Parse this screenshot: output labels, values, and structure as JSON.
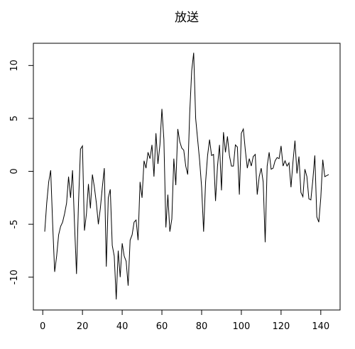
{
  "chart_data": {
    "type": "line",
    "title": "放送",
    "x": [
      1,
      2,
      3,
      4,
      5,
      6,
      7,
      8,
      9,
      10,
      11,
      12,
      13,
      14,
      15,
      16,
      17,
      18,
      19,
      20,
      21,
      22,
      23,
      24,
      25,
      26,
      27,
      28,
      29,
      30,
      31,
      32,
      33,
      34,
      35,
      36,
      37,
      38,
      39,
      40,
      41,
      42,
      43,
      44,
      45,
      46,
      47,
      48,
      49,
      50,
      51,
      52,
      53,
      54,
      55,
      56,
      57,
      58,
      59,
      60,
      61,
      62,
      63,
      64,
      65,
      66,
      67,
      68,
      69,
      70,
      71,
      72,
      73,
      74,
      75,
      76,
      77,
      78,
      79,
      80,
      81,
      82,
      83,
      84,
      85,
      86,
      87,
      88,
      89,
      90,
      91,
      92,
      93,
      94,
      95,
      96,
      97,
      98,
      99,
      100,
      101,
      102,
      103,
      104,
      105,
      106,
      107,
      108,
      109,
      110,
      111,
      112,
      113,
      114,
      115,
      116,
      117,
      118,
      119,
      120,
      121,
      122,
      123,
      124,
      125,
      126,
      127,
      128,
      129,
      130,
      131,
      132,
      133,
      134,
      135,
      136,
      137,
      138,
      139,
      140,
      141,
      142,
      143,
      144
    ],
    "series": [
      {
        "color": "#000000",
        "values": [
          -5.7,
          -3,
          -1,
          0.1,
          -5,
          -9.5,
          -8,
          -6,
          -5.2,
          -4.8,
          -4,
          -3,
          -0.5,
          -2.5,
          0.1,
          -5,
          -9.7,
          -3,
          2.1,
          2.4,
          -5.6,
          -4,
          -1.2,
          -3.5,
          -0.3,
          -1.5,
          -3,
          -5,
          -3.5,
          -1.5,
          0.3,
          -9,
          -2.5,
          -1.7,
          -7,
          -8,
          -12.1,
          -7.5,
          -10,
          -6.8,
          -8,
          -8.5,
          -10.8,
          -6.5,
          -6,
          -4.8,
          -4.6,
          -6.5,
          -1,
          -2.5,
          1,
          0.3,
          1.8,
          1.2,
          2.5,
          -0.5,
          3.6,
          0.7,
          2.5,
          5.9,
          3,
          -5.3,
          -2.2,
          -5.7,
          -4.5,
          1.2,
          -1.3,
          4,
          2.8,
          2.2,
          2,
          0.5,
          -0.3,
          5.5,
          9.5,
          11.2,
          5,
          3,
          1,
          -1.5,
          -5.7,
          -1,
          1.5,
          3,
          1.5,
          1.6,
          -2.8,
          0.5,
          2.5,
          -1.8,
          3.7,
          1.8,
          3.3,
          1.5,
          0.5,
          0.5,
          2.5,
          2.3,
          -2.2,
          3.6,
          4,
          2,
          0.3,
          1.2,
          0.5,
          1.4,
          1.6,
          -2.2,
          -0.5,
          0.3,
          -1,
          -6.7,
          0.5,
          1.8,
          0.2,
          0.3,
          1,
          1.3,
          1.2,
          2.4,
          0.5,
          1,
          0.5,
          0.8,
          -1.5,
          0.9,
          2.9,
          -0.2,
          1.4,
          -2,
          -2.4,
          0.2,
          -0.5,
          -2.6,
          -2.7,
          -0.8,
          1.5,
          -4.3,
          -4.8,
          -2.5,
          1.1,
          -0.5,
          -0.4,
          -0.3
        ]
      }
    ],
    "xlim": [
      -4.72,
      149.72
    ],
    "ylim": [
      -13.1,
      12.1
    ],
    "xticks": [
      0,
      20,
      40,
      60,
      80,
      100,
      120,
      140
    ],
    "yticks": [
      -10,
      -5,
      0,
      5,
      10
    ]
  }
}
